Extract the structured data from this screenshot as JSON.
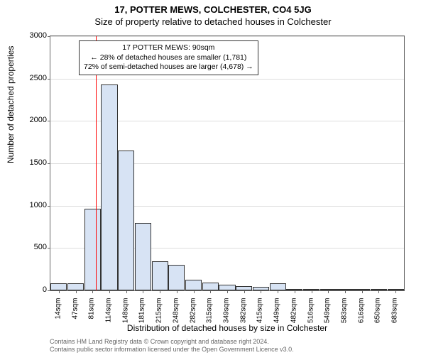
{
  "title_line1": "17, POTTER MEWS, COLCHESTER, CO4 5JG",
  "title_line2": "Size of property relative to detached houses in Colchester",
  "ylabel": "Number of detached properties",
  "xlabel": "Distribution of detached houses by size in Colchester",
  "chart": {
    "type": "histogram",
    "ylim": [
      0,
      3000
    ],
    "ytick_step": 500,
    "yticks": [
      0,
      500,
      1000,
      1500,
      2000,
      2500,
      3000
    ],
    "xticks": [
      "14sqm",
      "47sqm",
      "81sqm",
      "114sqm",
      "148sqm",
      "181sqm",
      "215sqm",
      "248sqm",
      "282sqm",
      "315sqm",
      "349sqm",
      "382sqm",
      "415sqm",
      "449sqm",
      "482sqm",
      "516sqm",
      "549sqm",
      "583sqm",
      "616sqm",
      "650sqm",
      "683sqm"
    ],
    "bars": [
      80,
      80,
      960,
      2430,
      1650,
      800,
      340,
      300,
      130,
      90,
      70,
      50,
      40,
      80,
      20,
      10,
      10,
      10,
      5,
      5,
      5
    ],
    "bar_fill": "#d7e3f4",
    "bar_stroke": "#333333",
    "grid_color": "#dddddd",
    "background": "#ffffff",
    "marker_line_color": "#ff0000",
    "marker_position_index": 2.7
  },
  "annotation": {
    "line1": "17 POTTER MEWS: 90sqm",
    "line2": "← 28% of detached houses are smaller (1,781)",
    "line3": "72% of semi-detached houses are larger (4,678) →"
  },
  "footer_line1": "Contains HM Land Registry data © Crown copyright and database right 2024.",
  "footer_line2": "Contains public sector information licensed under the Open Government Licence v3.0."
}
